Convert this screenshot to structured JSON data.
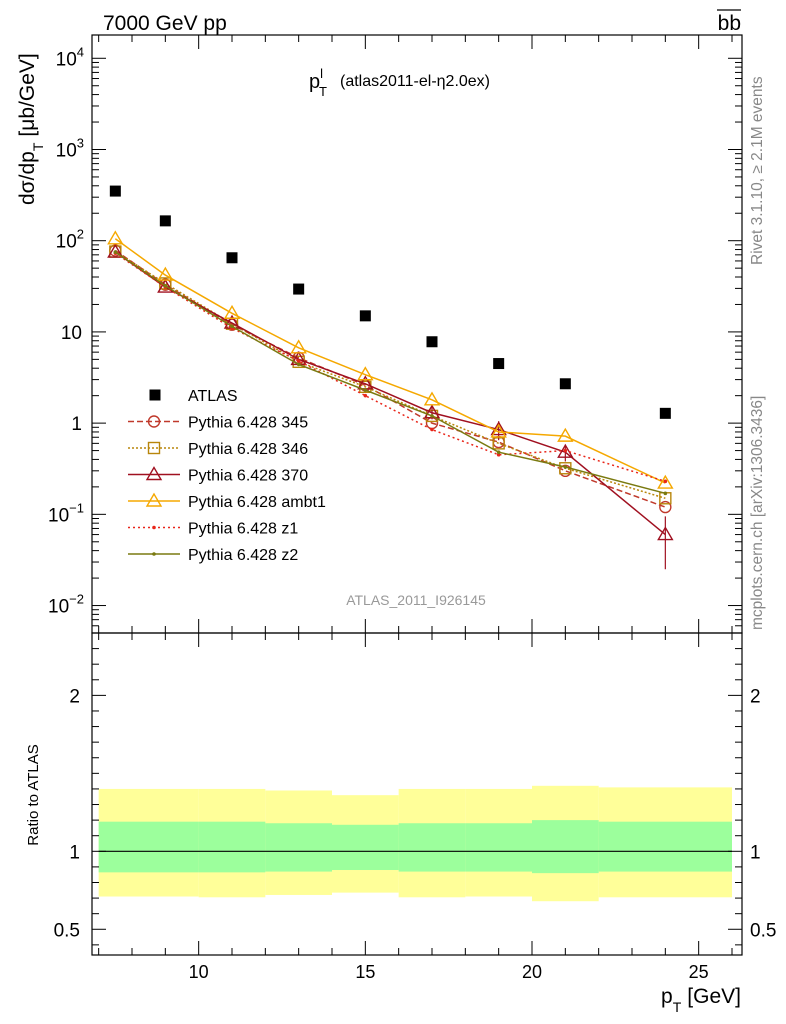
{
  "header": {
    "left_label": "7000 GeV pp",
    "right_label": "bb",
    "side_top": "Rivet 3.1.10, ≥ 2.1M events",
    "side_bottom": "mcplots.cern.ch [arXiv:1306.3436]"
  },
  "main": {
    "title_main": "p",
    "title_sup": "l",
    "title_sub": "T",
    "title_detail": "(atlas2011-el-η2.0ex)",
    "ylabel": "dσ/dp",
    "ylabel_sub": "T",
    "ylabel_unit": "[μb/GeV]",
    "analysis_id": "ATLAS_2011_I926145"
  },
  "ratio": {
    "ylabel": "Ratio to ATLAS"
  },
  "xaxis": {
    "label": "p",
    "label_sub": "T",
    "label_unit": "[GeV]"
  },
  "legend": [
    {
      "name": "ATLAS"
    },
    {
      "name": "Pythia 6.428 345"
    },
    {
      "name": "Pythia 6.428 346"
    },
    {
      "name": "Pythia 6.428 370"
    },
    {
      "name": "Pythia 6.428 ambt1"
    },
    {
      "name": "Pythia 6.428 z1"
    },
    {
      "name": "Pythia 6.428 z2"
    }
  ],
  "chart_data": {
    "type": "line",
    "yscale": "log",
    "xlim": [
      6.8,
      26.3
    ],
    "ylim": [
      0.005,
      18000
    ],
    "ratio_ylim": [
      0.335,
      2.4
    ],
    "yticks": [
      {
        "v": 0.01,
        "base": "10",
        "exp": "−2"
      },
      {
        "v": 0.1,
        "base": "10",
        "exp": "−1"
      },
      {
        "v": 1,
        "base": "1",
        "exp": ""
      },
      {
        "v": 10,
        "base": "10",
        "exp": ""
      },
      {
        "v": 100,
        "base": "10",
        "exp": "2"
      },
      {
        "v": 1000,
        "base": "10",
        "exp": "3"
      },
      {
        "v": 10000,
        "base": "10",
        "exp": "4"
      }
    ],
    "ratio_ticks": [
      {
        "v": 0.5,
        "label": "0.5"
      },
      {
        "v": 1,
        "label": "1"
      },
      {
        "v": 2,
        "label": "2"
      }
    ],
    "xticks": [
      10,
      15,
      20,
      25
    ],
    "bins": [
      [
        7,
        8
      ],
      [
        8,
        10
      ],
      [
        10,
        12
      ],
      [
        12,
        14
      ],
      [
        14,
        16
      ],
      [
        16,
        18
      ],
      [
        18,
        20
      ],
      [
        20,
        22
      ],
      [
        22,
        26
      ]
    ],
    "data": {
      "name": "ATLAS",
      "x": [
        7.5,
        9,
        11,
        13,
        15,
        17,
        19,
        21,
        24
      ],
      "y": [
        350,
        165,
        65,
        29.5,
        15,
        7.8,
        4.5,
        2.7,
        1.28
      ]
    },
    "ratio_bands": {
      "inner_lo": [
        0.865,
        0.865,
        0.865,
        0.87,
        0.88,
        0.87,
        0.87,
        0.86,
        0.87
      ],
      "inner_hi": [
        1.19,
        1.19,
        1.19,
        1.18,
        1.17,
        1.18,
        1.18,
        1.2,
        1.19
      ],
      "outer_lo": [
        0.71,
        0.71,
        0.705,
        0.72,
        0.735,
        0.705,
        0.71,
        0.68,
        0.705
      ],
      "outer_hi": [
        1.4,
        1.4,
        1.4,
        1.39,
        1.36,
        1.4,
        1.4,
        1.42,
        1.41
      ]
    },
    "series": [
      {
        "name": "Pythia 6.428 345",
        "color": "#c0392b",
        "dash": "6,3",
        "marker": "circle",
        "x": [
          7.5,
          9,
          11,
          13,
          15,
          17,
          19,
          21,
          24
        ],
        "y": [
          78,
          33,
          12,
          5.2,
          2.6,
          1.0,
          0.62,
          0.3,
          0.12
        ]
      },
      {
        "name": "Pythia 6.428 346",
        "color": "#b8860b",
        "dash": "2,2",
        "marker": "square",
        "x": [
          7.5,
          9,
          11,
          13,
          15,
          17,
          19,
          21,
          24
        ],
        "y": [
          76,
          34,
          12.3,
          4.7,
          2.5,
          1.2,
          0.6,
          0.32,
          0.15
        ]
      },
      {
        "name": "Pythia 6.428 370",
        "color": "#a01020",
        "dash": "",
        "marker": "triangle",
        "x": [
          7.5,
          9,
          11,
          13,
          15,
          17,
          19,
          21,
          24
        ],
        "y": [
          75,
          31,
          12.5,
          5.0,
          2.7,
          1.3,
          0.85,
          0.48,
          0.06
        ],
        "yerr": [
          0,
          0,
          0,
          0,
          0,
          0.2,
          0.2,
          0.1,
          0.035
        ]
      },
      {
        "name": "Pythia 6.428 ambt1",
        "color": "#f5a800",
        "dash": "",
        "marker": "triangle",
        "x": [
          7.5,
          9,
          11,
          13,
          15,
          17,
          19,
          21,
          24
        ],
        "y": [
          105,
          42,
          16,
          6.7,
          3.4,
          1.8,
          0.8,
          0.72,
          0.22
        ]
      },
      {
        "name": "Pythia 6.428 z1",
        "color": "#e8261a",
        "dash": "2,3",
        "marker": "dot",
        "x": [
          7.5,
          9,
          11,
          13,
          15,
          17,
          19,
          21,
          24
        ],
        "y": [
          73,
          31,
          11,
          4.8,
          2.0,
          0.85,
          0.45,
          0.5,
          0.23
        ]
      },
      {
        "name": "Pythia 6.428 z2",
        "color": "#7a7a10",
        "dash": "",
        "marker": "dot",
        "x": [
          7.5,
          9,
          11,
          13,
          15,
          17,
          19,
          21,
          24
        ],
        "y": [
          75,
          32,
          11.5,
          4.4,
          2.3,
          1.2,
          0.48,
          0.33,
          0.17
        ]
      }
    ]
  }
}
